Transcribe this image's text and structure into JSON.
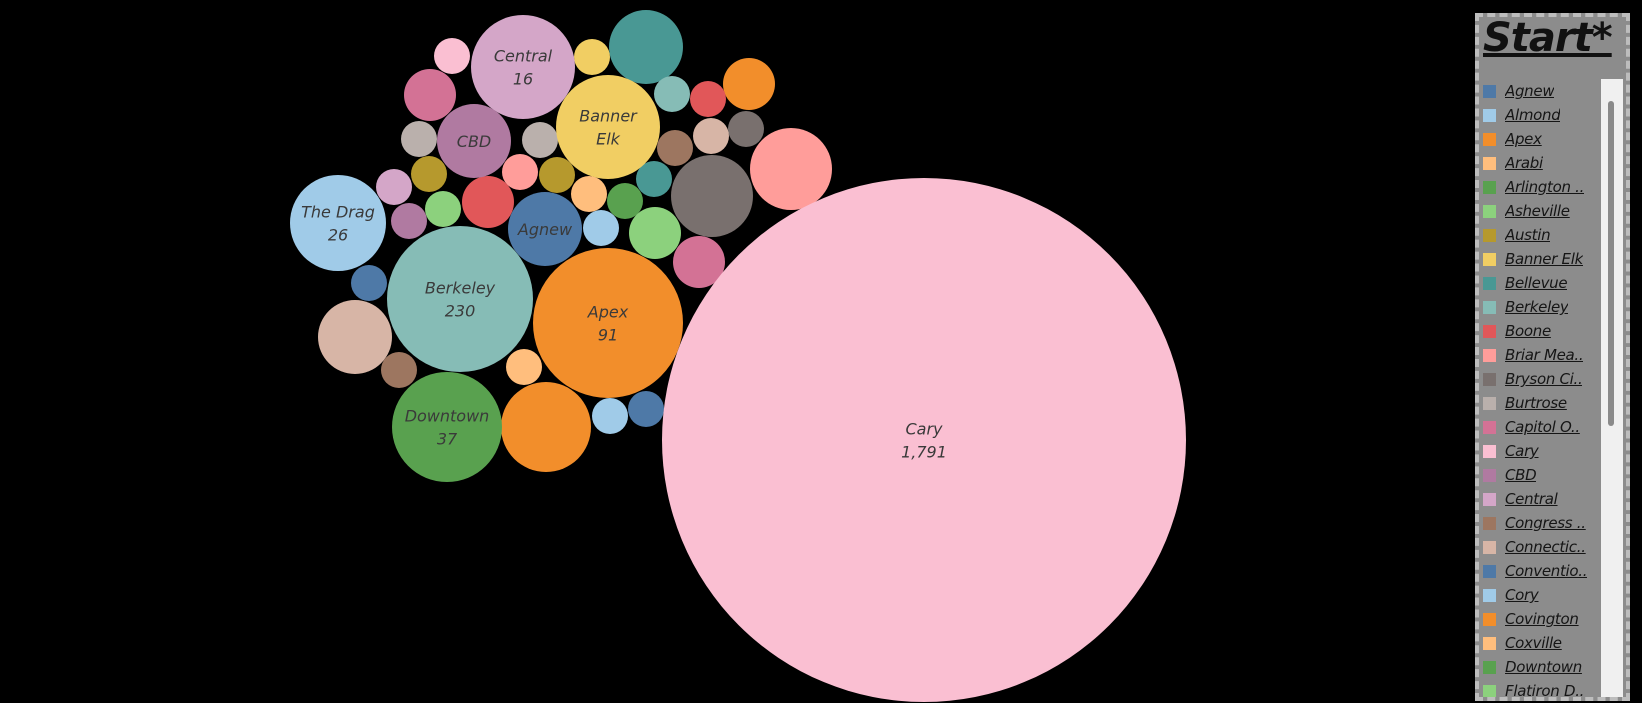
{
  "chart_data": {
    "type": "bubble",
    "title": "",
    "legend_title": "Start*",
    "legend_position": "right",
    "legend_colors": {
      "Agnew": "#4e79a7",
      "Almond": "#a0cbe8",
      "Apex": "#f28e2b",
      "Arabi": "#ffbe7d",
      "Arlington ..": "#59a14f",
      "Asheville": "#8cd17d",
      "Austin": "#b6992d",
      "Banner Elk": "#f1ce63",
      "Bellevue": "#499894",
      "Berkeley": "#86bcb6",
      "Boone": "#e15759",
      "Briar Mea..": "#ff9d9a",
      "Bryson Ci..": "#79706e",
      "Burtrose": "#bab0ac",
      "Capitol O..": "#d37295",
      "Cary": "#fabfd2",
      "CBD": "#b07aa1",
      "Central": "#d4a6c8",
      "Congress ..": "#9d7660",
      "Connectic..": "#d7b5a6",
      "Conventio..": "#4e79a7",
      "Cory": "#a0cbe8",
      "Covington": "#f28e2b",
      "Coxville": "#ffbe7d",
      "Downtown": "#59a14f",
      "Flatiron D..": "#8cd17d"
    },
    "bubbles": [
      {
        "name": "Cary",
        "value": 1791,
        "label_value": "1,791",
        "color": "#fabfd2",
        "labeled": true
      },
      {
        "name": "Berkeley",
        "value": 230,
        "label_value": "230",
        "color": "#86bcb6",
        "labeled": true
      },
      {
        "name": "Apex",
        "value": 91,
        "label_value": "91",
        "color": "#f28e2b",
        "labeled": true
      },
      {
        "name": "Downtown",
        "value": 37,
        "label_value": "37",
        "color": "#59a14f",
        "labeled": true
      },
      {
        "name": "The Drag",
        "value": 26,
        "label_value": "26",
        "color": "#a0cbe8",
        "labeled": true
      },
      {
        "name": "Central",
        "value": 16,
        "label_value": "16",
        "color": "#d4a6c8",
        "labeled": true
      },
      {
        "name": "Banner Elk",
        "value": 16,
        "label_value": "",
        "color": "#f1ce63",
        "labeled": true
      },
      {
        "name": "CBD",
        "value": 8,
        "label_value": "",
        "color": "#b07aa1",
        "labeled": true
      },
      {
        "name": "Agnew",
        "value": 8,
        "label_value": "",
        "color": "#4e79a7",
        "labeled": true
      }
    ]
  },
  "legend": {
    "title": "Start*",
    "items": [
      "Agnew",
      "Almond",
      "Apex",
      "Arabi",
      "Arlington ..",
      "Asheville",
      "Austin",
      "Banner Elk",
      "Bellevue",
      "Berkeley",
      "Boone",
      "Briar Mea..",
      "Bryson Ci..",
      "Burtrose",
      "Capitol O..",
      "Cary",
      "CBD",
      "Central",
      "Congress ..",
      "Connectic..",
      "Conventio..",
      "Cory",
      "Covington",
      "Coxville",
      "Downtown",
      "Flatiron D.."
    ]
  }
}
